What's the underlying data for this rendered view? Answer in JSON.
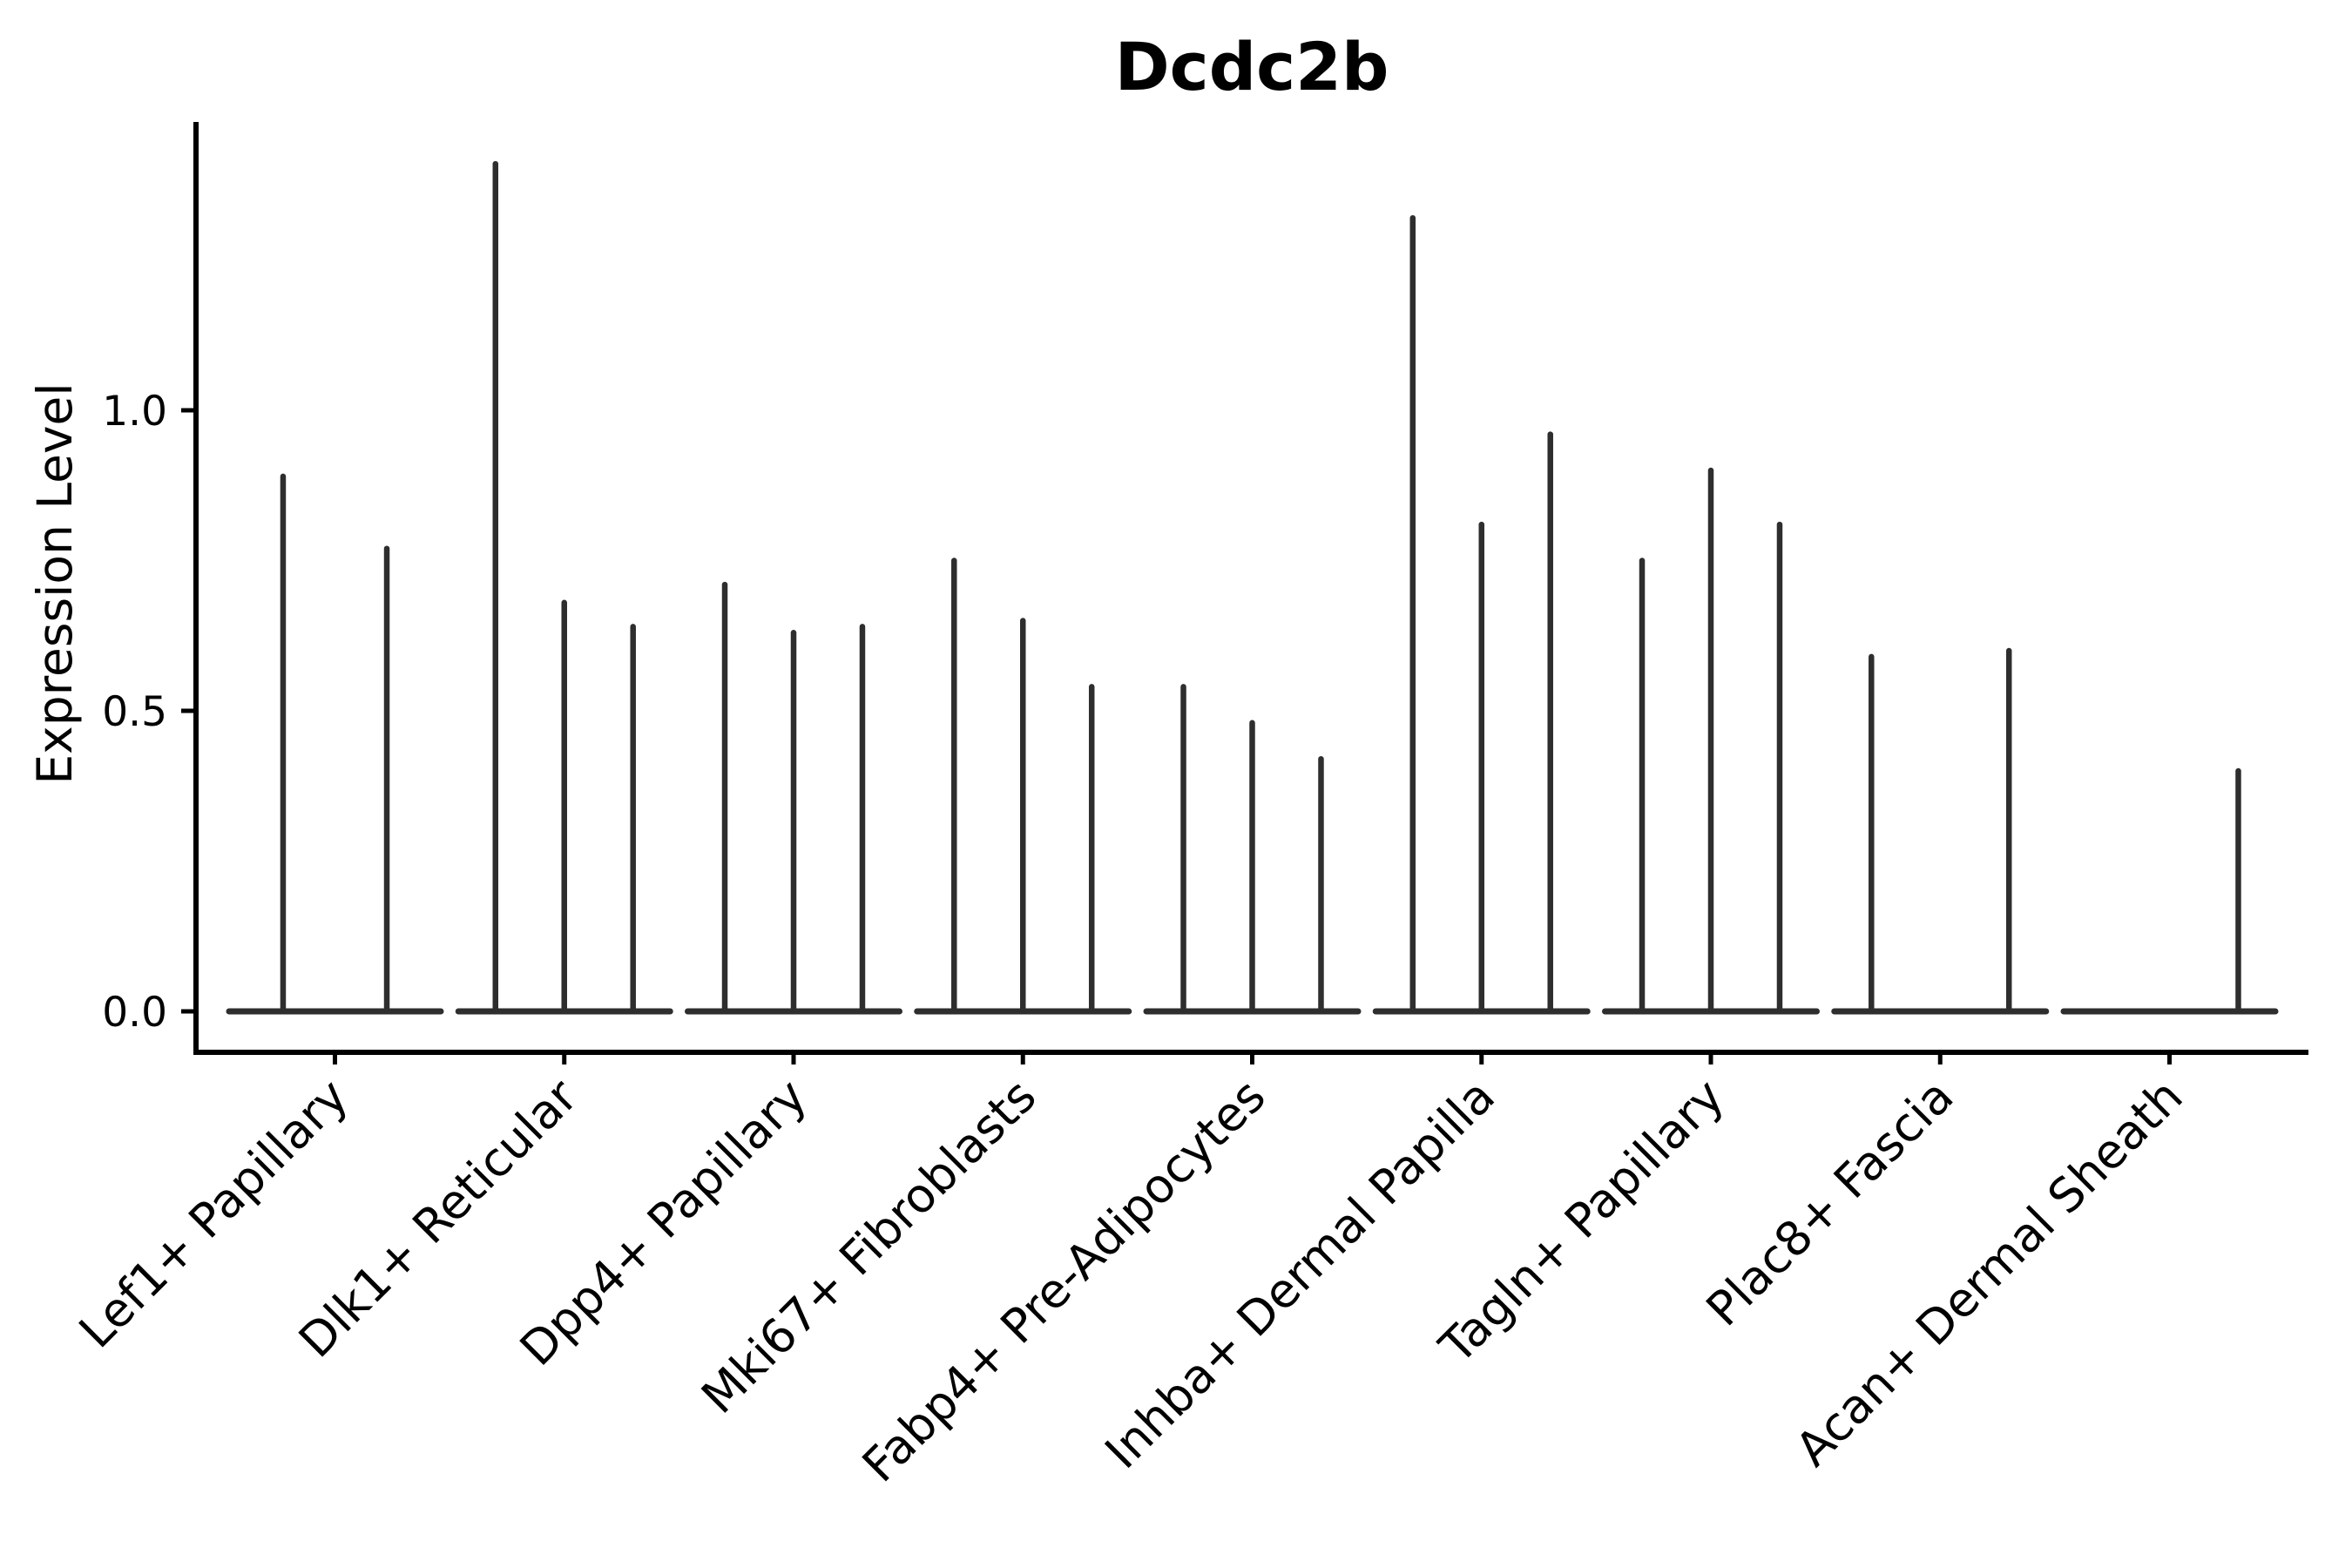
{
  "chart_data": {
    "type": "violin",
    "title": "Dcdc2b",
    "ylabel": "Expression Level",
    "ytick_labels": [
      "0.0",
      "0.5",
      "1.0"
    ],
    "ytick_values": [
      0.0,
      0.5,
      1.0
    ],
    "ylim": [
      0,
      1.48
    ],
    "grid": false,
    "legend": "none",
    "colors": {
      "violin_stroke": "#2e2e2e",
      "axis": "#000000",
      "text": "#000000",
      "background": "#ffffff"
    },
    "categories": [
      {
        "label": "Lef1+ Papillary",
        "violins": [
          {
            "offset_frac": -0.49,
            "max": 0.89
          },
          {
            "offset_frac": 0.49,
            "max": 0.77
          }
        ]
      },
      {
        "label": "Dlk1+ Reticular",
        "violins": [
          {
            "offset_frac": -0.65,
            "max": 1.41
          },
          {
            "offset_frac": 0.0,
            "max": 0.68
          },
          {
            "offset_frac": 0.65,
            "max": 0.64
          }
        ]
      },
      {
        "label": "Dpp4+ Papillary",
        "violins": [
          {
            "offset_frac": -0.65,
            "max": 0.71
          },
          {
            "offset_frac": 0.0,
            "max": 0.63
          },
          {
            "offset_frac": 0.65,
            "max": 0.64
          }
        ]
      },
      {
        "label": "Mki67+ Fibroblasts",
        "violins": [
          {
            "offset_frac": -0.65,
            "max": 0.75
          },
          {
            "offset_frac": 0.0,
            "max": 0.65
          },
          {
            "offset_frac": 0.65,
            "max": 0.54
          }
        ]
      },
      {
        "label": "Fabp4+ Pre-Adipocytes",
        "violins": [
          {
            "offset_frac": -0.65,
            "max": 0.54
          },
          {
            "offset_frac": 0.0,
            "max": 0.48
          },
          {
            "offset_frac": 0.65,
            "max": 0.42
          }
        ]
      },
      {
        "label": "Inhba+ Dermal Papilla",
        "violins": [
          {
            "offset_frac": -0.65,
            "max": 1.32
          },
          {
            "offset_frac": 0.0,
            "max": 0.81
          },
          {
            "offset_frac": 0.65,
            "max": 0.96
          }
        ]
      },
      {
        "label": "Tagln+ Papillary",
        "violins": [
          {
            "offset_frac": -0.65,
            "max": 0.75
          },
          {
            "offset_frac": 0.0,
            "max": 0.9
          },
          {
            "offset_frac": 0.65,
            "max": 0.81
          }
        ]
      },
      {
        "label": "Plac8+ Fascia",
        "violins": [
          {
            "offset_frac": -0.65,
            "max": 0.59
          },
          {
            "offset_frac": 0.65,
            "max": 0.6
          }
        ]
      },
      {
        "label": "Acan+ Dermal Sheath",
        "violins": [
          {
            "offset_frac": 0.65,
            "max": 0.4
          }
        ]
      }
    ]
  }
}
